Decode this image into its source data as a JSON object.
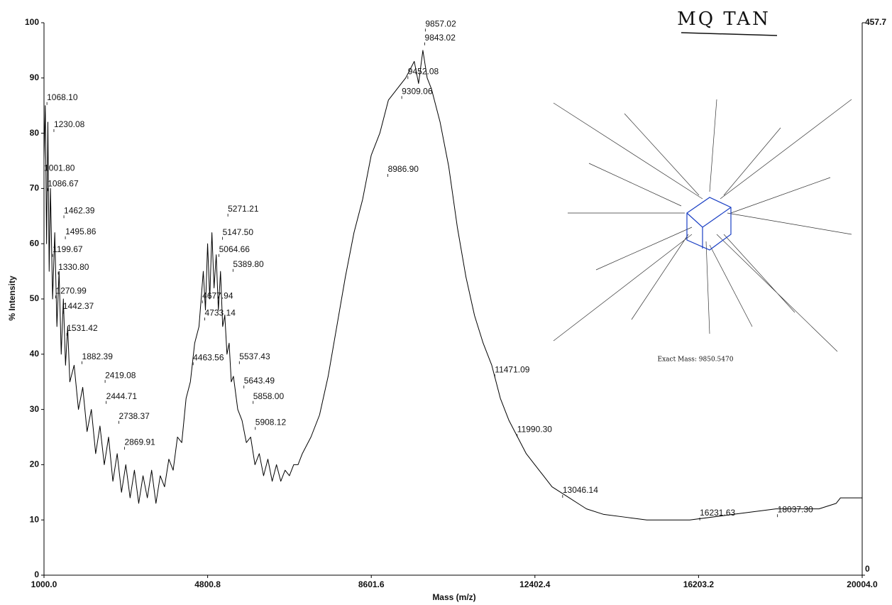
{
  "chart_data": {
    "type": "line",
    "annotation": "MQ TAN",
    "inset_caption": "Exact Mass: 9850.5470",
    "xlabel": "Mass (m/z)",
    "ylabel": "% Intensity",
    "xlim": [
      1000,
      20004
    ],
    "xticks": [
      {
        "value": 1000,
        "label": "1000.0"
      },
      4800.8,
      8601.6,
      12402.4,
      16203.2,
      {
        "value": 20004,
        "label": "20004.0"
      }
    ],
    "ylim": [
      0,
      100
    ],
    "yticks": [
      0,
      10,
      20,
      30,
      40,
      50,
      60,
      70,
      80,
      90,
      100
    ],
    "y2lim": [
      0,
      457.7
    ],
    "y2ticks": [
      0,
      457.7
    ],
    "series": [
      {
        "color": "#000000",
        "x": [
          1000,
          1030,
          1060,
          1090,
          1120,
          1150,
          1200,
          1250,
          1300,
          1350,
          1400,
          1450,
          1500,
          1550,
          1600,
          1700,
          1800,
          1900,
          2000,
          2100,
          2200,
          2300,
          2400,
          2500,
          2600,
          2700,
          2800,
          2900,
          3000,
          3100,
          3200,
          3300,
          3400,
          3500,
          3600,
          3700,
          3800,
          3900,
          4000,
          4100,
          4200,
          4300,
          4400,
          4500,
          4600,
          4700,
          4750,
          4800,
          4850,
          4900,
          4950,
          5000,
          5050,
          5100,
          5150,
          5200,
          5250,
          5300,
          5350,
          5400,
          5500,
          5600,
          5700,
          5800,
          5900,
          6000,
          6100,
          6200,
          6300,
          6400,
          6500,
          6600,
          6700,
          6800,
          6900,
          7000,
          7200,
          7400,
          7600,
          7800,
          8000,
          8200,
          8400,
          8600,
          8800,
          9000,
          9200,
          9400,
          9600,
          9700,
          9800,
          9900,
          10000,
          10200,
          10400,
          10600,
          10800,
          11000,
          11200,
          11400,
          11600,
          11800,
          12000,
          12200,
          12400,
          12600,
          12800,
          13000,
          13200,
          13400,
          13600,
          14000,
          14500,
          15000,
          16000,
          17000,
          18000,
          19000,
          19400,
          19500,
          20004
        ],
        "values": [
          75,
          85,
          60,
          82,
          55,
          70,
          50,
          62,
          45,
          55,
          40,
          50,
          38,
          45,
          35,
          38,
          30,
          34,
          26,
          30,
          22,
          27,
          20,
          25,
          17,
          22,
          15,
          20,
          14,
          19,
          13,
          18,
          14,
          19,
          13,
          18,
          16,
          21,
          19,
          25,
          24,
          32,
          35,
          42,
          45,
          55,
          48,
          60,
          50,
          62,
          52,
          58,
          48,
          55,
          45,
          47,
          40,
          42,
          35,
          36,
          30,
          28,
          24,
          25,
          20,
          22,
          18,
          21,
          17,
          20,
          17,
          19,
          18,
          20,
          20,
          22,
          25,
          29,
          36,
          45,
          54,
          62,
          68,
          76,
          80,
          86,
          88,
          90,
          93,
          89,
          95,
          90,
          88,
          82,
          74,
          63,
          54,
          47,
          42,
          38,
          32,
          28,
          25,
          22,
          20,
          18,
          16,
          15,
          14,
          13,
          12,
          11,
          10.5,
          10,
          10,
          11,
          12,
          12,
          13,
          14,
          14
        ]
      }
    ],
    "peak_labels": {
      "x": [
        1068.1,
        1230.08,
        1001.8,
        1086.67,
        1462.39,
        1495.86,
        1199.67,
        1330.8,
        1270.99,
        1442.37,
        1531.42,
        1882.39,
        2419.08,
        2444.71,
        2738.37,
        2869.91,
        4463.56,
        4677.94,
        4733.14,
        5271.21,
        5147.5,
        5064.66,
        5389.8,
        5537.43,
        5643.49,
        5858.0,
        5908.12,
        8986.9,
        9309.06,
        9452.08,
        9843.02,
        9857.02,
        11471.09,
        11990.3,
        13046.14,
        16231.63,
        18037.3
      ],
      "x_labels": [
        "1068.10",
        "1230.08",
        "1001.80",
        "1086.67",
        "1462.39",
        "1495.86",
        "1199.67",
        "1330.80",
        "1270.99",
        "1442.37",
        "1531.42",
        "1882.39",
        "2419.08",
        "2444.71",
        "2738.37",
        "2869.91",
        "4463.56",
        "4677.94",
        "4733.14",
        "5271.21",
        "5147.50",
        "5064.66",
        "5389.80",
        "5537.43",
        "5643.49",
        "5858.00",
        "5908.12",
        "8986.90",
        "9309.06",
        "9452.08",
        "9843.02",
        "9857.02",
        "11471.09",
        "11990.30",
        "13046.14",
        "16231.63",
        "18037.30"
      ],
      "values": [
        86.4,
        81.5,
        73.6,
        70.8,
        65.9,
        62.1,
        58.9,
        55.7,
        51.4,
        48.6,
        44.6,
        39.5,
        36.1,
        32.3,
        28.7,
        24.0,
        39.3,
        50.5,
        47.4,
        66.2,
        62.0,
        58.9,
        56.2,
        39.5,
        35.1,
        32.3,
        27.6,
        73.4,
        87.5,
        91.1,
        97.2,
        99.7,
        37.1,
        26.3,
        15.3,
        11.2,
        11.8
      ]
    }
  }
}
